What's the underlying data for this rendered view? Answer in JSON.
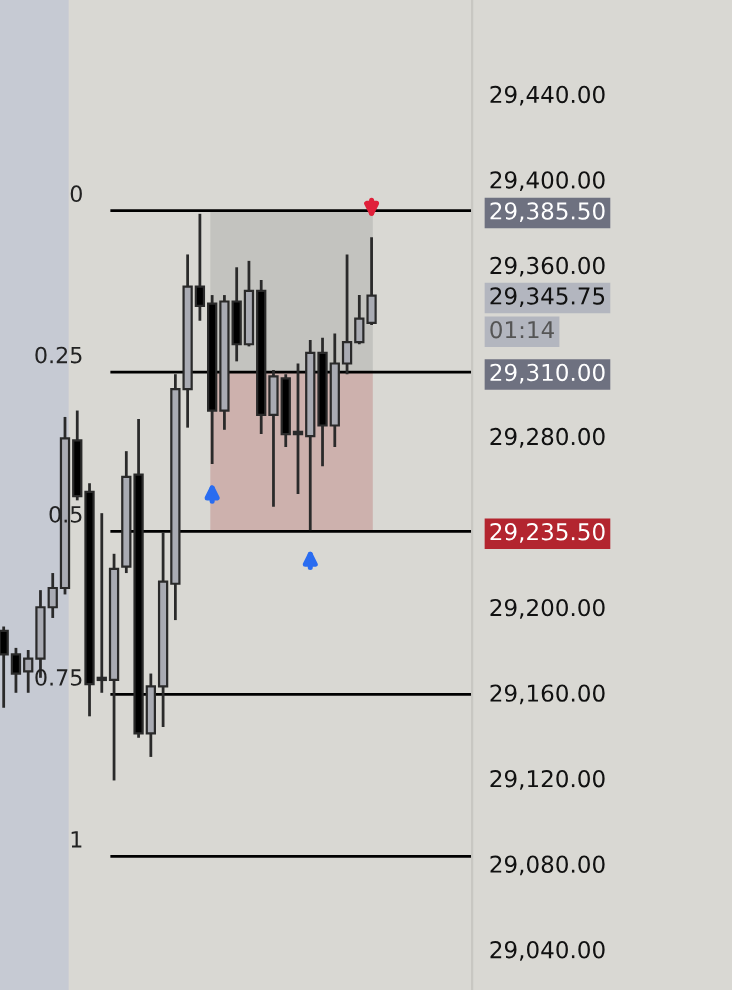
{
  "chart_data": {
    "type": "candlestick",
    "categories": [
      null,
      null,
      null,
      null,
      null,
      null,
      null,
      null,
      null,
      null,
      null,
      null,
      null,
      null,
      null,
      null,
      null,
      null,
      null,
      null,
      null,
      null,
      null,
      null,
      null,
      null,
      null,
      null,
      null,
      null,
      null
    ],
    "ohlc": [
      [
        29189,
        29191,
        29153,
        29178
      ],
      [
        29178,
        29181,
        29160,
        29169
      ],
      [
        29170,
        29180,
        29160,
        29176
      ],
      [
        29176,
        29208,
        29167,
        29200
      ],
      [
        29200,
        29216,
        29195,
        29209
      ],
      [
        29209,
        29289,
        29206,
        29279
      ],
      [
        29278,
        29292,
        29250,
        29252
      ],
      [
        29254,
        29258,
        29149,
        29164
      ],
      [
        29167,
        29244,
        29160,
        29166
      ],
      [
        29166,
        29225,
        29119,
        29218
      ],
      [
        29219,
        29273,
        29216,
        29261
      ],
      [
        29262,
        29288,
        29139,
        29141
      ],
      [
        29141,
        29169,
        29130,
        29163
      ],
      [
        29163,
        29235,
        29144,
        29212
      ],
      [
        29211,
        29309,
        29194,
        29302
      ],
      [
        29302,
        29365,
        29284,
        29350
      ],
      [
        29350,
        29384,
        29334,
        29341
      ],
      [
        29342,
        29346,
        29267,
        29292
      ],
      [
        29292,
        29346,
        29283,
        29343
      ],
      [
        29343,
        29359,
        29315,
        29323
      ],
      [
        29323,
        29362,
        29322,
        29348
      ],
      [
        29348,
        29353,
        29281,
        29290
      ],
      [
        29290,
        29311,
        29247,
        29308
      ],
      [
        29307,
        29309,
        29275,
        29281
      ],
      [
        29282,
        29314,
        29253,
        29281
      ],
      [
        29280,
        29325,
        29236,
        29319
      ],
      [
        29319,
        29326,
        29266,
        29285
      ],
      [
        29285,
        29328,
        29275,
        29314
      ],
      [
        29314,
        29365,
        29309,
        29324
      ],
      [
        29324,
        29346,
        29323,
        29335
      ],
      [
        29333,
        29373,
        29332,
        29345.75
      ]
    ],
    "ylim": [
      29021,
      29484
    ],
    "yticks": [
      {
        "value": 29440,
        "label": "29,440.00"
      },
      {
        "value": 29400,
        "label": "29,400.00"
      },
      {
        "value": 29385.5,
        "label": "29,385.50"
      },
      {
        "value": 29360,
        "label": "29,360.00"
      },
      {
        "value": 29345.75,
        "label": "29,345.75"
      },
      {
        "value": 29310,
        "label": "29,310.00"
      },
      {
        "value": 29280,
        "label": "29,280.00"
      },
      {
        "value": 29235.5,
        "label": "29,235.50"
      },
      {
        "value": 29200,
        "label": "29,200.00"
      },
      {
        "value": 29160,
        "label": "29,160.00"
      },
      {
        "value": 29120,
        "label": "29,120.00"
      },
      {
        "value": 29080,
        "label": "29,080.00"
      },
      {
        "value": 29040,
        "label": "29,040.00"
      }
    ],
    "ref_lines": [
      {
        "axis": "y",
        "value": 29385.5,
        "color": "#000000"
      },
      {
        "axis": "y",
        "value": 29310,
        "color": "#000000"
      },
      {
        "axis": "y",
        "value": 29235.5,
        "color": "#000000"
      },
      {
        "axis": "y",
        "value": 29159.25,
        "color": "#000000"
      },
      {
        "axis": "y",
        "value": 29083.5,
        "color": "#000000"
      }
    ],
    "bands": [
      {
        "axis": "y",
        "from": 29310,
        "to": 29385.5,
        "color": "#c3c3bf"
      },
      {
        "axis": "y",
        "from": 29235.5,
        "to": 29310,
        "color": "#cdb1ad"
      }
    ],
    "annotations": [
      "01:14",
      "0",
      "0.25",
      "0.5",
      "0.75",
      "1"
    ],
    "grid": false
  }
}
